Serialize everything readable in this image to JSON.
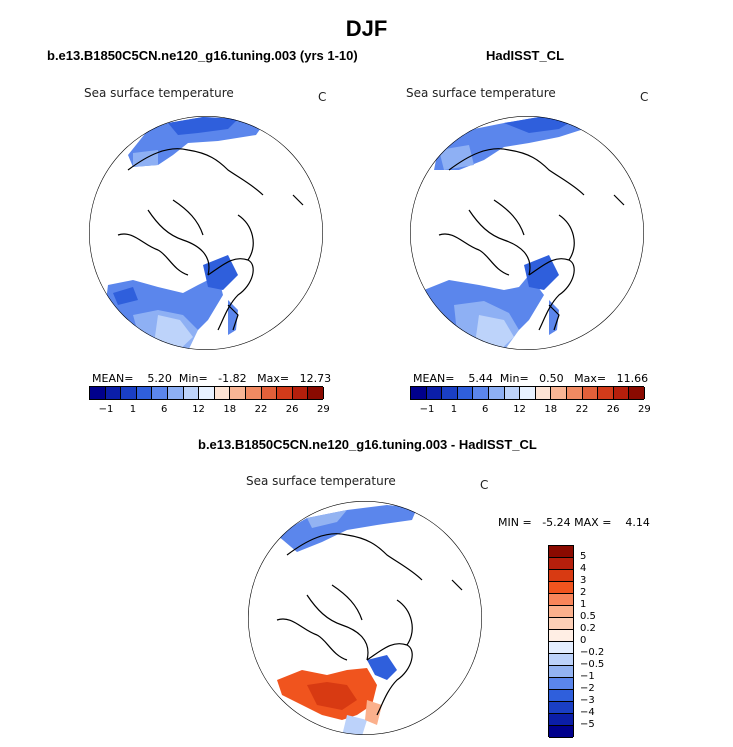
{
  "figure": {
    "season": "DJF",
    "units": "C",
    "variable": "Sea surface temperature"
  },
  "panels": [
    {
      "id": "model",
      "title": "b.e13.B1850C5CN.ne120_g16.tuning.003 (yrs 1-10)",
      "subtitle": "Sea surface temperature",
      "units": "C",
      "stats": {
        "mean_label": "MEAN=",
        "mean": "5.20",
        "min_label": "Min=",
        "min": "-1.82",
        "max_label": "Max=",
        "max": "12.73"
      }
    },
    {
      "id": "obs",
      "title": "HadISST_CL",
      "subtitle": "Sea surface temperature",
      "units": "C",
      "stats": {
        "mean_label": "MEAN=",
        "mean": "5.44",
        "min_label": "Min=",
        "min": "0.50",
        "max_label": "Max=",
        "max": "11.66"
      }
    },
    {
      "id": "diff",
      "title": "b.e13.B1850C5CN.ne120_g16.tuning.003 - HadISST_CL",
      "subtitle": "Sea surface temperature",
      "units": "C",
      "stats": {
        "min_label": "MIN =",
        "min": "-5.24",
        "max_label": "MAX =",
        "max": "4.14"
      }
    }
  ],
  "colorbars": {
    "abs": {
      "labels": [
        "-1",
        "1",
        "6",
        "12",
        "18",
        "22",
        "26",
        "29"
      ],
      "colors": [
        "#00008c",
        "#0b1ea8",
        "#1a3fc4",
        "#2f5fdc",
        "#5b86ec",
        "#8eb0f4",
        "#bdd3fa",
        "#e8f1ff",
        "#fde3d4",
        "#f8b595",
        "#f08a62",
        "#e2603a",
        "#d23b1a",
        "#b51f0c",
        "#8a0a00"
      ]
    },
    "diff": {
      "labels": [
        "5",
        "4",
        "3",
        "2",
        "1",
        "0.5",
        "0.2",
        "0",
        "-0.2",
        "-0.5",
        "-1",
        "-2",
        "-3",
        "-4",
        "-5"
      ],
      "colors": [
        "#8a0a00",
        "#b51f0c",
        "#d83a12",
        "#f0541e",
        "#f8855a",
        "#fbb08c",
        "#fdcfb6",
        "#ffeee4",
        "#e4eeff",
        "#bcd2fa",
        "#93b3f2",
        "#5b86ec",
        "#2f5fdc",
        "#1a3fc4",
        "#0b1ea8",
        "#00008c"
      ]
    }
  }
}
